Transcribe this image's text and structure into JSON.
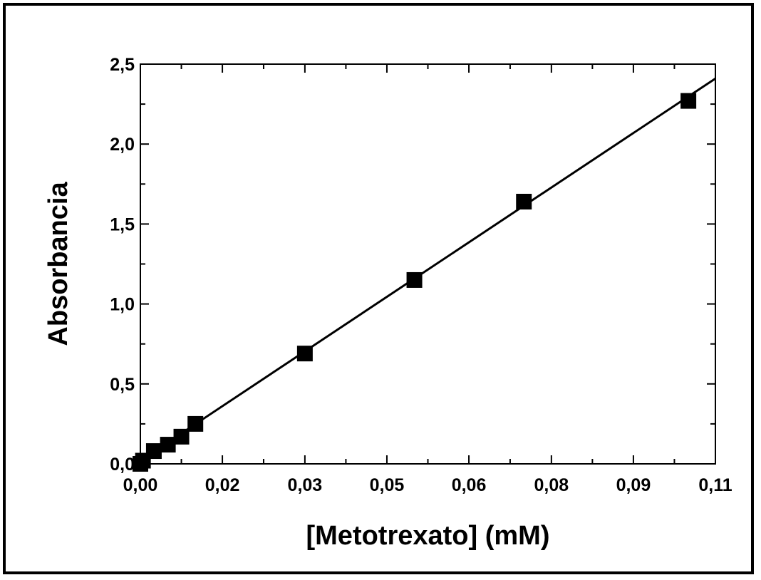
{
  "chart_data": {
    "type": "scatter",
    "title": "",
    "xlabel": "[Metotrexato] (mM)",
    "ylabel": "Absorbancia",
    "xlim": [
      0,
      0.1108
    ],
    "ylim": [
      0,
      2.5
    ],
    "x_tick_values": [
      0,
      0.0158,
      0.0317,
      0.0475,
      0.0633,
      0.0792,
      0.095,
      0.1108
    ],
    "x_tick_labels": [
      "0,00",
      "0,02",
      "0,03",
      "0,05",
      "0,06",
      "0,08",
      "0,09",
      "0,11"
    ],
    "y_tick_values": [
      0,
      0.5,
      1.0,
      1.5,
      2.0,
      2.5
    ],
    "y_tick_labels": [
      "0,0",
      "0,5",
      "1,0",
      "1,5",
      "2,0",
      "2,5"
    ],
    "grid": false,
    "legend": null,
    "series": [
      {
        "marker": "square",
        "color": "#000000",
        "x": [
          0.0,
          0.0005,
          0.0026,
          0.0053,
          0.0079,
          0.0106,
          0.0317,
          0.0528,
          0.0739,
          0.1056
        ],
        "y": [
          0.0,
          0.02,
          0.08,
          0.12,
          0.17,
          0.25,
          0.69,
          1.15,
          1.64,
          2.27
        ]
      }
    ],
    "fit_line": {
      "x": [
        0.0,
        0.1108
      ],
      "y": [
        0.02,
        2.41
      ],
      "color": "#000000"
    }
  }
}
